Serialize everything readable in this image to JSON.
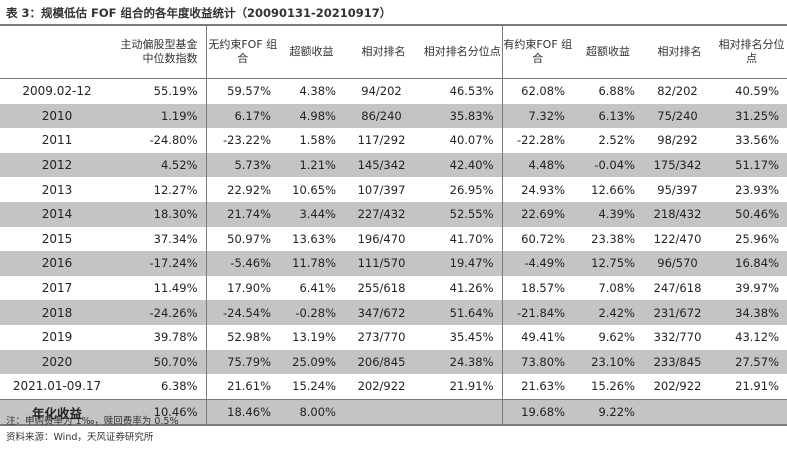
{
  "title": "表 3：规模低估 FOF 组合的各年度收益统计（20090131-20210917）",
  "headers": {
    "median": "主动偏股型基金中位数指数",
    "fof_unconstrained": "无约束FOF 组合",
    "excess_1": "超额收益",
    "rank_1": "相对排名",
    "pct_1": "相对排名分位点",
    "fof_constrained": "有约束FOF 组合",
    "excess_2": "超额收益",
    "rank_2": "相对排名",
    "pct_2": "相对排名分位点"
  },
  "rows": [
    [
      "2009.02-12",
      "55.19%",
      "59.57%",
      "4.38%",
      "94/202",
      "46.53%",
      "62.08%",
      "6.88%",
      "82/202",
      "40.59%"
    ],
    [
      "2010",
      "1.19%",
      "6.17%",
      "4.98%",
      "86/240",
      "35.83%",
      "7.32%",
      "6.13%",
      "75/240",
      "31.25%"
    ],
    [
      "2011",
      "-24.80%",
      "-23.22%",
      "1.58%",
      "117/292",
      "40.07%",
      "-22.28%",
      "2.52%",
      "98/292",
      "33.56%"
    ],
    [
      "2012",
      "4.52%",
      "5.73%",
      "1.21%",
      "145/342",
      "42.40%",
      "4.48%",
      "-0.04%",
      "175/342",
      "51.17%"
    ],
    [
      "2013",
      "12.27%",
      "22.92%",
      "10.65%",
      "107/397",
      "26.95%",
      "24.93%",
      "12.66%",
      "95/397",
      "23.93%"
    ],
    [
      "2014",
      "18.30%",
      "21.74%",
      "3.44%",
      "227/432",
      "52.55%",
      "22.69%",
      "4.39%",
      "218/432",
      "50.46%"
    ],
    [
      "2015",
      "37.34%",
      "50.97%",
      "13.63%",
      "196/470",
      "41.70%",
      "60.72%",
      "23.38%",
      "122/470",
      "25.96%"
    ],
    [
      "2016",
      "-17.24%",
      "-5.46%",
      "11.78%",
      "111/570",
      "19.47%",
      "-4.49%",
      "12.75%",
      "96/570",
      "16.84%"
    ],
    [
      "2017",
      "11.49%",
      "17.90%",
      "6.41%",
      "255/618",
      "41.26%",
      "18.57%",
      "7.08%",
      "247/618",
      "39.97%"
    ],
    [
      "2018",
      "-24.26%",
      "-24.54%",
      "-0.28%",
      "347/672",
      "51.64%",
      "-21.84%",
      "2.42%",
      "231/672",
      "34.38%"
    ],
    [
      "2019",
      "39.78%",
      "52.98%",
      "13.19%",
      "273/770",
      "35.45%",
      "49.41%",
      "9.62%",
      "332/770",
      "43.12%"
    ],
    [
      "2020",
      "50.70%",
      "75.79%",
      "25.09%",
      "206/845",
      "24.38%",
      "73.80%",
      "23.10%",
      "233/845",
      "27.57%"
    ],
    [
      "2021.01-09.17",
      "6.38%",
      "21.61%",
      "15.24%",
      "202/922",
      "21.91%",
      "21.63%",
      "15.26%",
      "202/922",
      "21.91%"
    ],
    [
      "年化收益",
      "10.46%",
      "18.46%",
      "8.00%",
      "",
      "",
      "19.68%",
      "9.22%",
      "",
      ""
    ]
  ],
  "notes": {
    "line1": "注：申购费率为 1‰，赎回费率为 0.5%",
    "line2": "资料来源：Wind，天风证券研究所"
  }
}
